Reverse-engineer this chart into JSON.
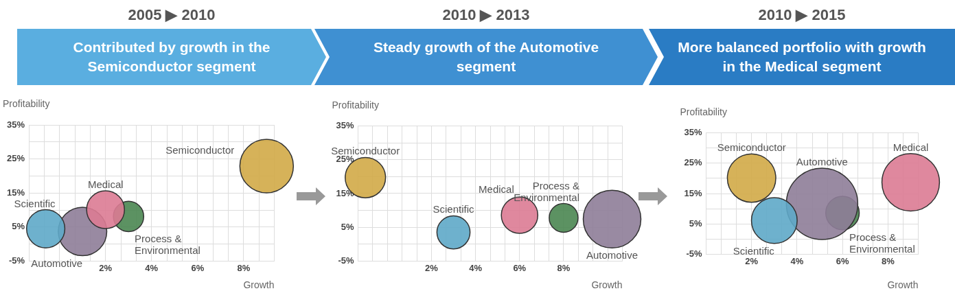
{
  "chart_data": [
    {
      "type": "bubble",
      "title": "2005 ▶ 2010",
      "subtitle": "Contributed by growth in the Semiconductor segment",
      "xlabel": "Growth",
      "ylabel": "Profitability",
      "legend": false,
      "grid": true,
      "xlim": [
        -1.333,
        9.333
      ],
      "xticks": [
        {
          "value": -0.667,
          "label": null
        },
        {
          "value": 0,
          "label": null
        },
        {
          "value": 0.667,
          "label": null
        },
        {
          "value": 1.333,
          "label": null
        },
        {
          "value": 2,
          "label": "2%"
        },
        {
          "value": 2.667,
          "label": null
        },
        {
          "value": 3.333,
          "label": null
        },
        {
          "value": 4,
          "label": "4%"
        },
        {
          "value": 4.667,
          "label": null
        },
        {
          "value": 5.333,
          "label": null
        },
        {
          "value": 6,
          "label": "6%"
        },
        {
          "value": 6.667,
          "label": null
        },
        {
          "value": 7.333,
          "label": null
        },
        {
          "value": 8,
          "label": "8%"
        },
        {
          "value": 8.667,
          "label": null
        },
        {
          "value": 9.333,
          "label": null
        }
      ],
      "ylim": [
        -5,
        35
      ],
      "yticks": [
        {
          "value": -5,
          "label": "-5%"
        },
        {
          "value": 0,
          "label": null
        },
        {
          "value": 5,
          "label": "5%"
        },
        {
          "value": 10,
          "label": null
        },
        {
          "value": 15,
          "label": "15%"
        },
        {
          "value": 20,
          "label": null
        },
        {
          "value": 25,
          "label": "25%"
        },
        {
          "value": 30,
          "label": null
        },
        {
          "value": 35,
          "label": "35%"
        }
      ],
      "series": [
        {
          "name": "Semiconductor",
          "color": "#d1aa47",
          "x": [
            9.0
          ],
          "values": [
            22.9
          ],
          "sizes": [
            1
          ]
        },
        {
          "name": "Medical",
          "color": "#dc7b93",
          "x": [
            2.0
          ],
          "values": [
            10.1
          ],
          "sizes": [
            0.5
          ]
        },
        {
          "name": "Process & Environmental",
          "color": "#4a8651",
          "x": [
            3.0
          ],
          "values": [
            8.1
          ],
          "sizes": [
            0.32
          ]
        },
        {
          "name": "Scientific",
          "color": "#5ea9c8",
          "x": [
            -0.6
          ],
          "values": [
            4.5
          ],
          "sizes": [
            0.51
          ]
        },
        {
          "name": "Automotive",
          "color": "#8e7d98",
          "x": [
            1.0
          ],
          "values": [
            3.7
          ],
          "sizes": [
            0.82
          ]
        }
      ]
    },
    {
      "type": "bubble",
      "title": "2010 ▶ 2013",
      "subtitle": "Steady growth of the Automotive segment",
      "xlabel": "Growth",
      "ylabel": "Profitability",
      "legend": false,
      "grid": true,
      "xlim": [
        -1.333,
        10.667
      ],
      "xticks": [
        {
          "value": -0.667,
          "label": null
        },
        {
          "value": 0,
          "label": null
        },
        {
          "value": 0.667,
          "label": null
        },
        {
          "value": 1.333,
          "label": null
        },
        {
          "value": 2,
          "label": "2%"
        },
        {
          "value": 2.667,
          "label": null
        },
        {
          "value": 3.333,
          "label": null
        },
        {
          "value": 4,
          "label": "4%"
        },
        {
          "value": 4.667,
          "label": null
        },
        {
          "value": 5.333,
          "label": null
        },
        {
          "value": 6,
          "label": "6%"
        },
        {
          "value": 6.667,
          "label": null
        },
        {
          "value": 7.333,
          "label": null
        },
        {
          "value": 8,
          "label": "8%"
        },
        {
          "value": 8.667,
          "label": null
        },
        {
          "value": 9.333,
          "label": null
        },
        {
          "value": 10,
          "label": null
        },
        {
          "value": 10.667,
          "label": null
        }
      ],
      "ylim": [
        -5,
        35
      ],
      "yticks": [
        {
          "value": -5,
          "label": "-5%"
        },
        {
          "value": 0,
          "label": null
        },
        {
          "value": 5,
          "label": "5%"
        },
        {
          "value": 10,
          "label": null
        },
        {
          "value": 15,
          "label": "15%"
        },
        {
          "value": 20,
          "label": null
        },
        {
          "value": 25,
          "label": "25%"
        },
        {
          "value": 30,
          "label": null
        },
        {
          "value": 35,
          "label": "35%"
        }
      ],
      "series": [
        {
          "name": "Semiconductor",
          "color": "#d1aa47",
          "x": [
            -1.0
          ],
          "values": [
            19.7
          ],
          "sizes": [
            0.49
          ]
        },
        {
          "name": "Scientific",
          "color": "#5ea9c8",
          "x": [
            3.0
          ],
          "values": [
            3.5
          ],
          "sizes": [
            0.33
          ]
        },
        {
          "name": "Medical",
          "color": "#dc7b93",
          "x": [
            6.0
          ],
          "values": [
            8.6
          ],
          "sizes": [
            0.4
          ]
        },
        {
          "name": "Process & Environmental",
          "color": "#4a8651",
          "x": [
            8.0
          ],
          "values": [
            7.8
          ],
          "sizes": [
            0.25
          ]
        },
        {
          "name": "Automotive",
          "color": "#8e7d98",
          "x": [
            10.2
          ],
          "values": [
            7.4
          ],
          "sizes": [
            1
          ]
        }
      ]
    },
    {
      "type": "bubble",
      "title": "2010 ▶ 2015",
      "subtitle": "More balanced portfolio with growth in the Medical segment",
      "xlabel": "Growth",
      "ylabel": "Profitability",
      "legend": false,
      "grid": true,
      "xlim": [
        0,
        9.333
      ],
      "xticks": [
        {
          "value": 0,
          "label": null
        },
        {
          "value": 0.667,
          "label": null
        },
        {
          "value": 1.333,
          "label": null
        },
        {
          "value": 2,
          "label": "2%"
        },
        {
          "value": 2.667,
          "label": null
        },
        {
          "value": 3.333,
          "label": null
        },
        {
          "value": 4,
          "label": "4%"
        },
        {
          "value": 4.667,
          "label": null
        },
        {
          "value": 5.333,
          "label": null
        },
        {
          "value": 6,
          "label": "6%"
        },
        {
          "value": 6.667,
          "label": null
        },
        {
          "value": 7.333,
          "label": null
        },
        {
          "value": 8,
          "label": "8%"
        },
        {
          "value": 8.667,
          "label": null
        },
        {
          "value": 9.333,
          "label": null
        }
      ],
      "ylim": [
        -5,
        35
      ],
      "yticks": [
        {
          "value": -5,
          "label": "-5%"
        },
        {
          "value": 0,
          "label": null
        },
        {
          "value": 5,
          "label": "5%"
        },
        {
          "value": 10,
          "label": null
        },
        {
          "value": 15,
          "label": "15%"
        },
        {
          "value": 20,
          "label": null
        },
        {
          "value": 25,
          "label": "25%"
        },
        {
          "value": 30,
          "label": null
        },
        {
          "value": 35,
          "label": "35%"
        }
      ],
      "series": [
        {
          "name": "Semiconductor",
          "color": "#d1aa47",
          "x": [
            2.0
          ],
          "values": [
            20.1
          ],
          "sizes": [
            0.46
          ]
        },
        {
          "name": "Scientific",
          "color": "#5ea9c8",
          "x": [
            3.0
          ],
          "values": [
            6.1
          ],
          "sizes": [
            0.41
          ]
        },
        {
          "name": "Automotive",
          "color": "#8e7d98",
          "x": [
            5.1
          ],
          "values": [
            11.6
          ],
          "sizes": [
            1
          ]
        },
        {
          "name": "Process & Environmental",
          "color": "#4a8651",
          "x": [
            6.0
          ],
          "values": [
            8.6
          ],
          "sizes": [
            0.22
          ]
        },
        {
          "name": "Medical",
          "color": "#dc7b93",
          "x": [
            9.0
          ],
          "values": [
            18.7
          ],
          "sizes": [
            0.65
          ]
        }
      ]
    }
  ]
}
